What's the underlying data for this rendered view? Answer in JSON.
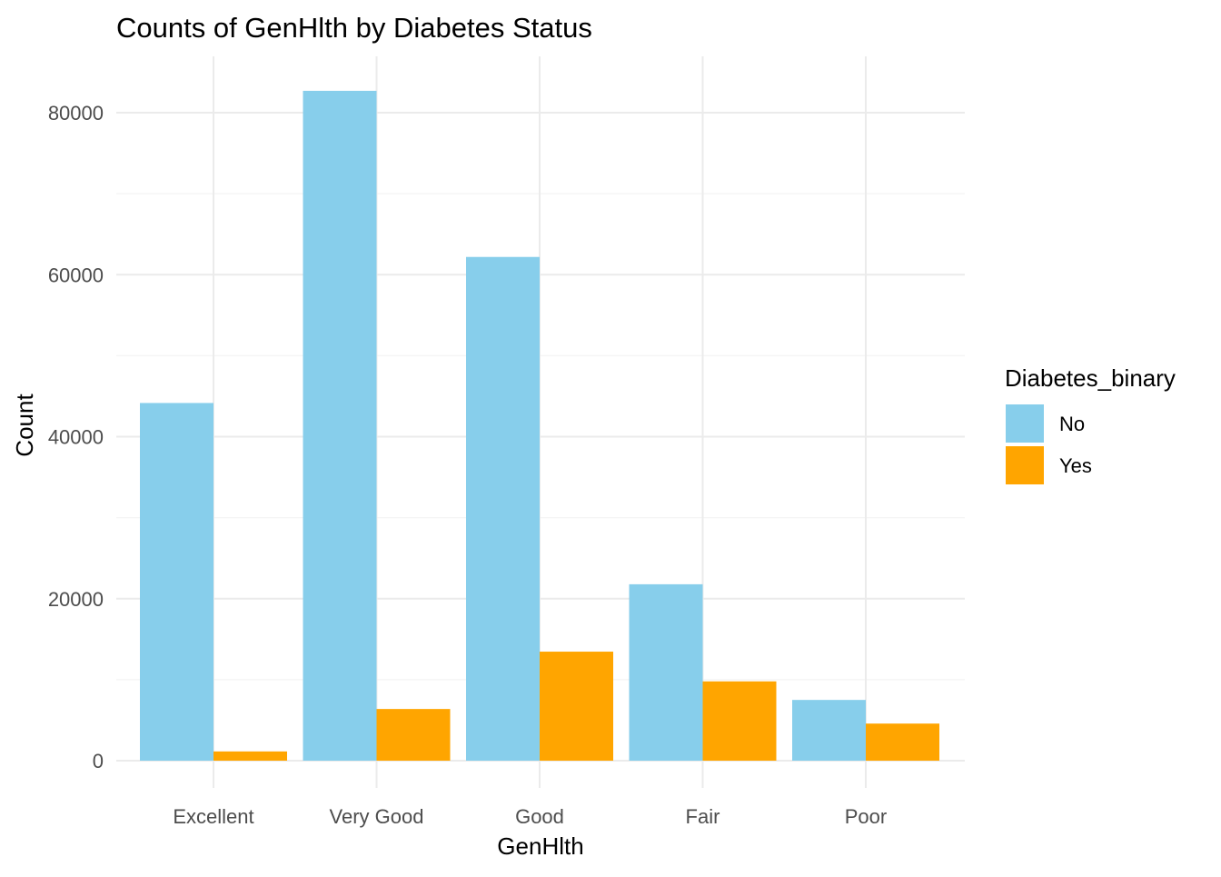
{
  "chart_data": {
    "type": "bar",
    "title": "Counts of GenHlth by Diabetes Status",
    "xlabel": "GenHlth",
    "ylabel": "Count",
    "categories": [
      "Excellent",
      "Very Good",
      "Good",
      "Fair",
      "Poor"
    ],
    "series": [
      {
        "name": "No",
        "color": "#87ceeb",
        "values": [
          44160,
          82700,
          62190,
          21780,
          7500
        ]
      },
      {
        "name": "Yes",
        "color": "#ffa500",
        "values": [
          1140,
          6380,
          13460,
          9790,
          4580
        ]
      }
    ],
    "ylim": [
      0,
      85000
    ],
    "yticks": [
      0,
      20000,
      40000,
      60000,
      80000
    ],
    "ytick_labels": [
      "0",
      "20000",
      "40000",
      "60000",
      "80000"
    ],
    "grid": true,
    "legend": {
      "title": "Diabetes_binary",
      "position": "right"
    }
  }
}
